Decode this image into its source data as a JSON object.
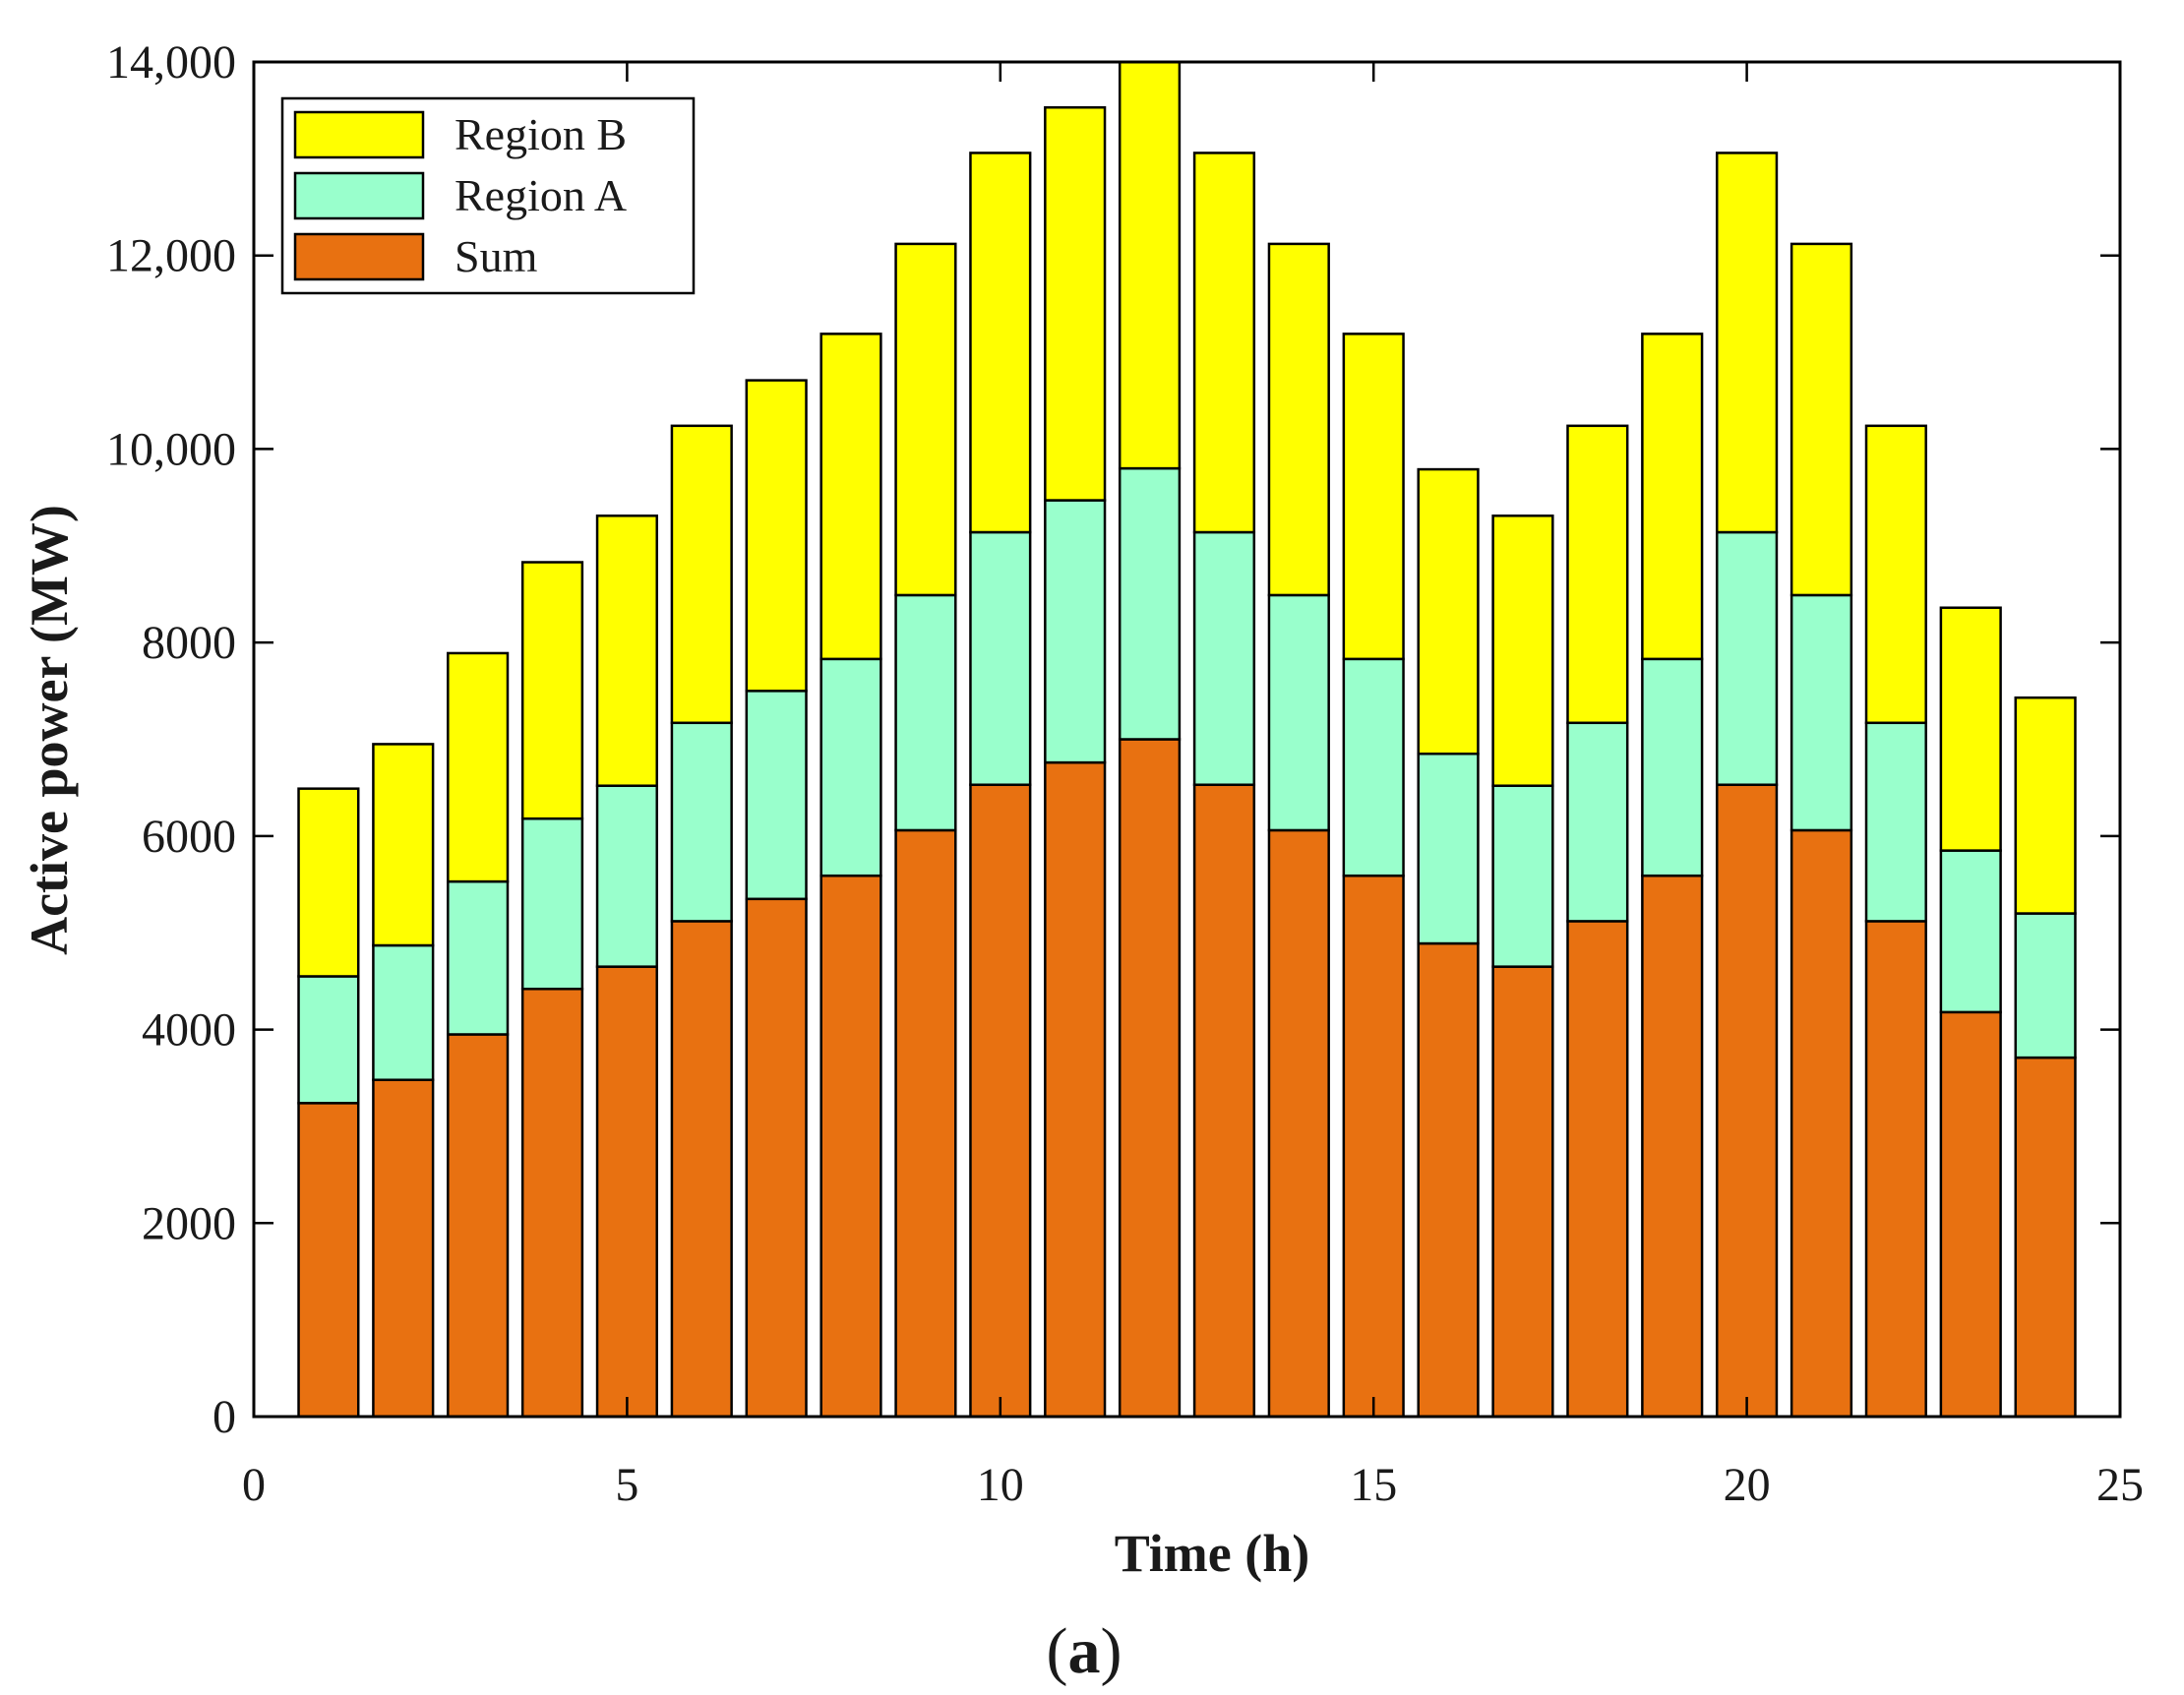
{
  "chart_data": {
    "type": "bar",
    "stacked": true,
    "title": "",
    "caption": {
      "open": "(",
      "letter": "a",
      "close": ")"
    },
    "xlabel": "Time  (h)",
    "ylabel": "Active power (MW)",
    "xlim": [
      0,
      25
    ],
    "ylim": [
      0,
      14000
    ],
    "grid": false,
    "legend_position": "top-left",
    "x": [
      1,
      2,
      3,
      4,
      5,
      6,
      7,
      8,
      9,
      10,
      11,
      12,
      13,
      14,
      15,
      16,
      17,
      18,
      19,
      20,
      21,
      22,
      23,
      24
    ],
    "x_ticks": [
      {
        "value": 0,
        "label": "0"
      },
      {
        "value": 5,
        "label": "5"
      },
      {
        "value": 10,
        "label": "10"
      },
      {
        "value": 15,
        "label": "15"
      },
      {
        "value": 20,
        "label": "20"
      },
      {
        "value": 25,
        "label": "25"
      }
    ],
    "y_ticks": [
      {
        "value": 0,
        "label": "0"
      },
      {
        "value": 2000,
        "label": "2000"
      },
      {
        "value": 4000,
        "label": "4000"
      },
      {
        "value": 6000,
        "label": "6000"
      },
      {
        "value": 8000,
        "label": "8000"
      },
      {
        "value": 10000,
        "label": "10,000"
      },
      {
        "value": 12000,
        "label": "12,000"
      },
      {
        "value": 14000,
        "label": "14,000"
      }
    ],
    "series": [
      {
        "name": "Sum",
        "color": "#e87111",
        "values": [
          3240,
          3480,
          3950,
          4420,
          4650,
          5120,
          5350,
          5590,
          6060,
          6530,
          6760,
          7000,
          6530,
          6060,
          5590,
          4890,
          4650,
          5120,
          5590,
          6530,
          6060,
          5120,
          4180,
          3710
        ]
      },
      {
        "name": "Region A",
        "color": "#99ffcc",
        "values": [
          1310,
          1390,
          1580,
          1760,
          1870,
          2050,
          2150,
          2240,
          2430,
          2610,
          2710,
          2800,
          2610,
          2430,
          2240,
          1960,
          1870,
          2050,
          2240,
          2610,
          2430,
          2050,
          1670,
          1490
        ]
      },
      {
        "name": "Region B",
        "color": "#ffff00",
        "values": [
          1940,
          2080,
          2360,
          2650,
          2790,
          3070,
          3210,
          3360,
          3630,
          3920,
          4060,
          4200,
          3920,
          3630,
          3360,
          2940,
          2790,
          3070,
          3360,
          3920,
          3630,
          3070,
          2510,
          2230
        ]
      }
    ],
    "legend": [
      {
        "name": "Region B",
        "color": "#ffff00"
      },
      {
        "name": "Region A",
        "color": "#99ffcc"
      },
      {
        "name": "Sum",
        "color": "#e87111"
      }
    ]
  }
}
